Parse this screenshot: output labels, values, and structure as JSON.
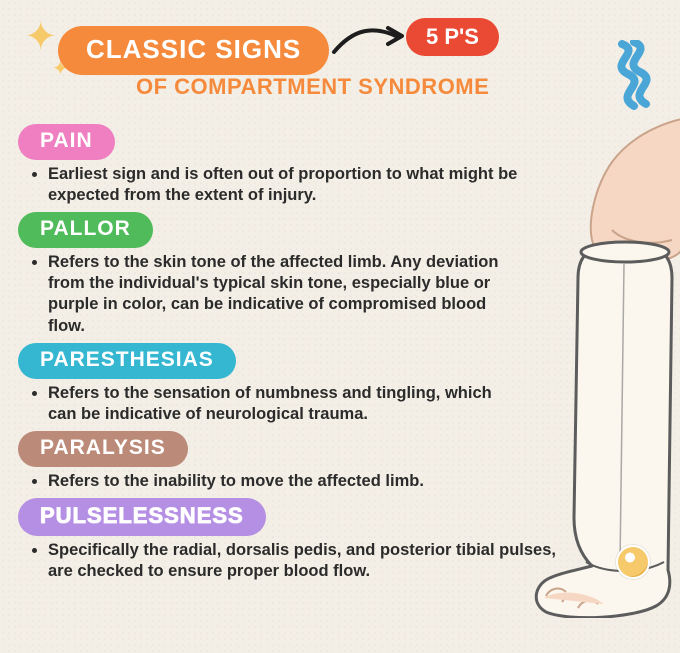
{
  "colors": {
    "paper": "#f4efe6",
    "title_bg": "#f58a3c",
    "subtitle": "#f58a3c",
    "badge_bg": "#ea4a33",
    "sparkle": "#f6c96b",
    "squiggle": "#4aa6d6",
    "text": "#2b2b2b",
    "arrow": "#1d1d1d",
    "skin": "#f6d7c3",
    "skin_line": "#caa38b",
    "cast": "#fbf6ee",
    "cast_line": "#5c5c5c"
  },
  "header": {
    "title": "CLASSIC SIGNS",
    "subtitle": "OF COMPARTMENT SYNDROME",
    "badge": "5 P'S"
  },
  "sections": [
    {
      "key": "pain",
      "label": "PAIN",
      "pill_color": "#ef7fc0",
      "font_size": 21,
      "outline": false,
      "bullets": [
        "Earliest sign and is often out of proportion to what might be expected from the extent of injury."
      ]
    },
    {
      "key": "pallor",
      "label": "PALLOR",
      "pill_color": "#4fbb5a",
      "font_size": 21,
      "outline": false,
      "bullets": [
        "Refers to the skin tone of the affected limb. Any deviation from the individual's typical skin tone, especially blue or purple in color, can be indicative of compromised blood flow."
      ]
    },
    {
      "key": "paresthesias",
      "label": "PARESTHESIAS",
      "pill_color": "#35b7d1",
      "font_size": 21,
      "outline": false,
      "bullets": [
        "Refers to the sensation of numbness and tingling, which can be indicative of neurological trauma."
      ]
    },
    {
      "key": "paralysis",
      "label": "PARALYSIS",
      "pill_color": "#bb8a78",
      "font_size": 21,
      "outline": false,
      "bullets": [
        "Refers to the inability to move the affected limb."
      ]
    },
    {
      "key": "pulselessness",
      "label": "PULSELESSNESS",
      "pill_color": "#b48fe3",
      "font_size": 22,
      "outline": true,
      "bullets": [
        "Specifically the radial, dorsalis pedis, and posterior tibial pulses, are checked to ensure proper blood flow."
      ]
    }
  ]
}
